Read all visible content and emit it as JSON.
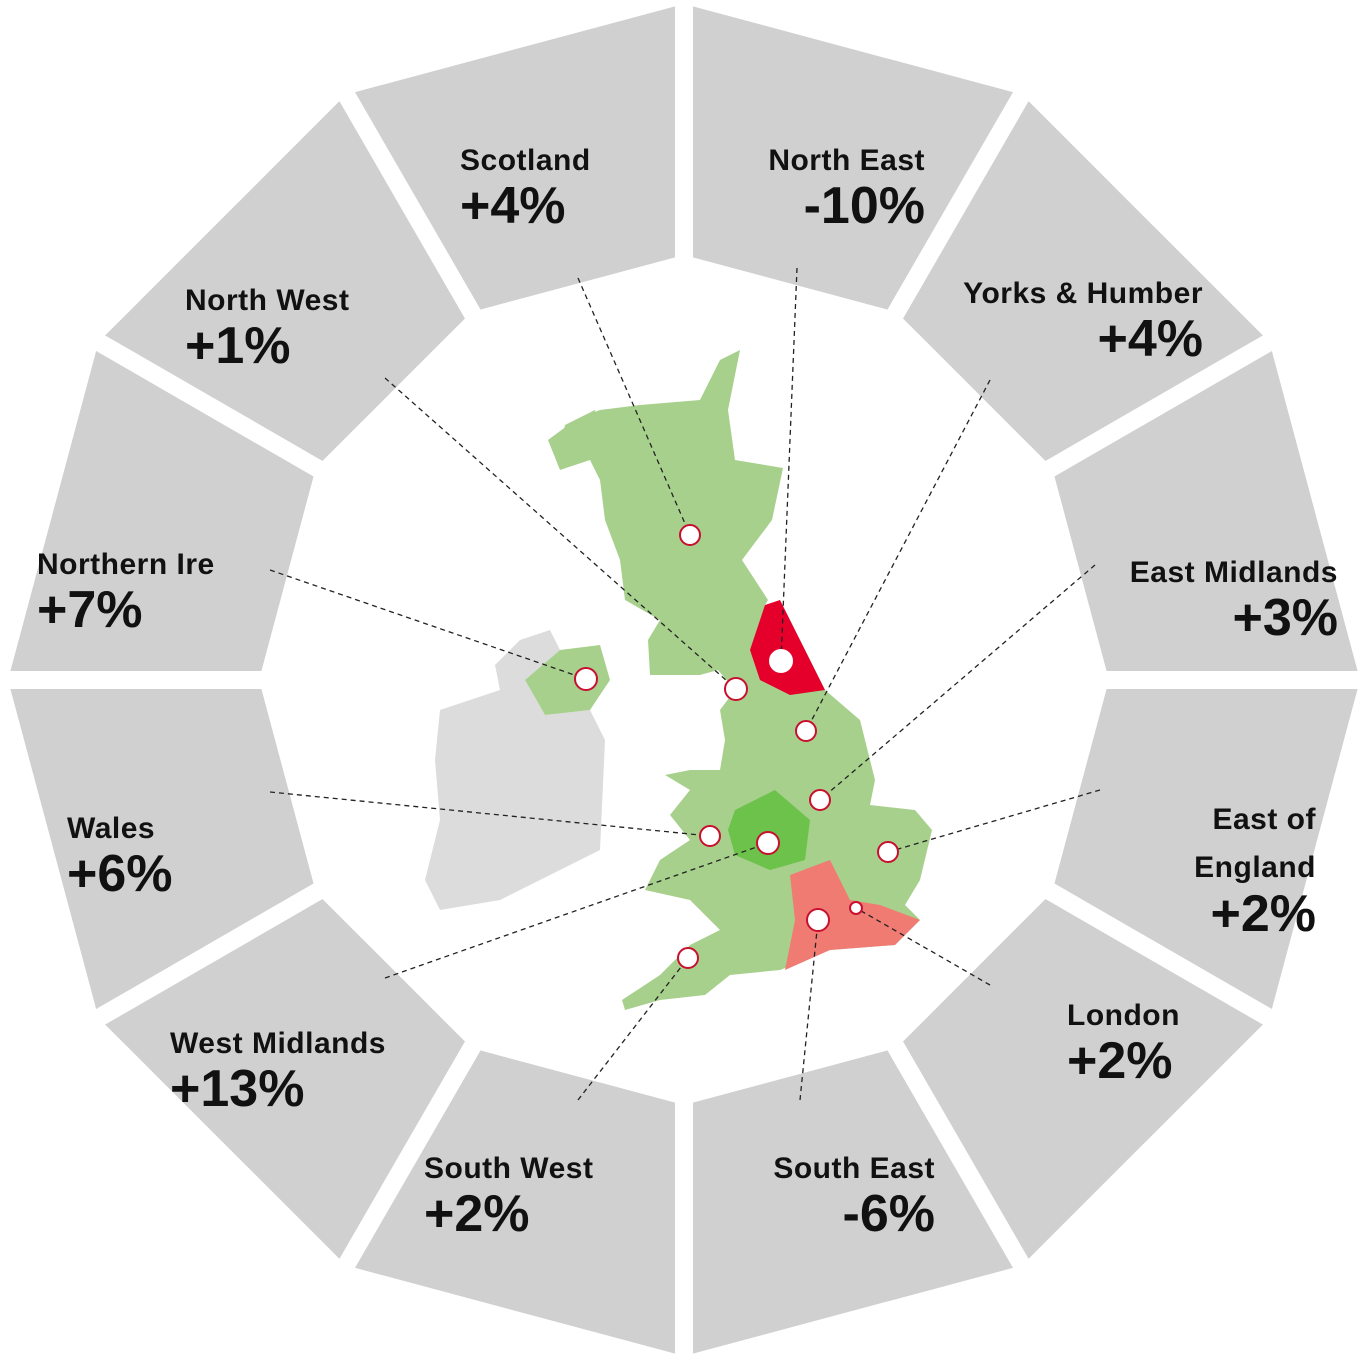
{
  "regions": [
    {
      "name": "Scotland",
      "change": "+4%"
    },
    {
      "name": "North East",
      "change": "-10%"
    },
    {
      "name": "Yorks & Humber",
      "change": "+4%"
    },
    {
      "name": "East Midlands",
      "change": "+3%"
    },
    {
      "name": "East of England",
      "change": "+2%"
    },
    {
      "name": "London",
      "change": "+2%"
    },
    {
      "name": "South East",
      "change": "-6%"
    },
    {
      "name": "South West",
      "change": "+2%"
    },
    {
      "name": "West Midlands",
      "change": "+13%"
    },
    {
      "name": "Wales",
      "change": "+6%"
    },
    {
      "name": "Northern Ire",
      "change": "+7%"
    },
    {
      "name": "North West",
      "change": "+1%"
    }
  ]
}
